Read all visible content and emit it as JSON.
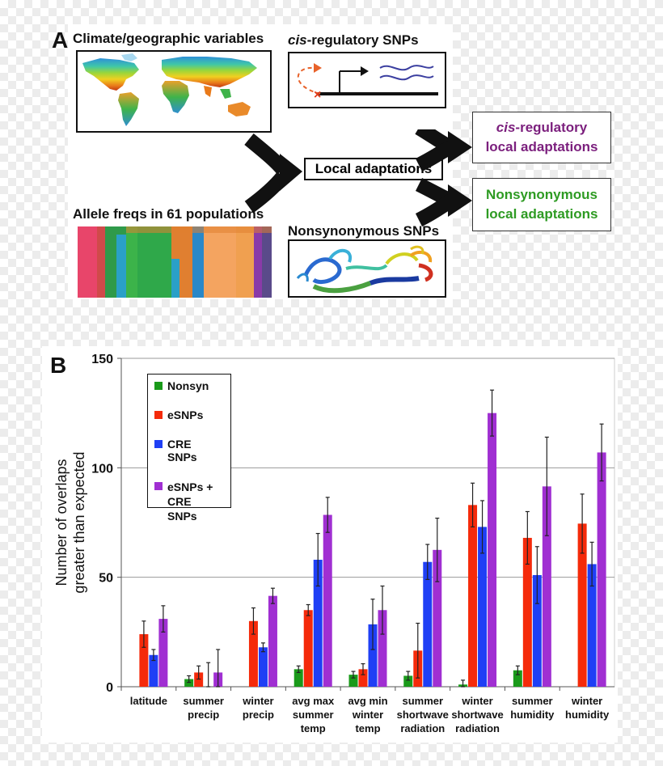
{
  "panel_a": {
    "letter": "A",
    "climate_label": "Climate/geographic variables",
    "allele_label": "Allele freqs in 61 populations",
    "cis_label_italic": "cis",
    "cis_label_rest": "-regulatory SNPs",
    "nonsyn_label": "Nonsynonymous SNPs",
    "local_adaptations": "Local adaptations",
    "out_cis_italic": "cis",
    "out_cis_rest": "-regulatory",
    "out_cis_line2": "local adaptations",
    "out_nonsyn_line1": "Nonsynonymous",
    "out_nonsyn_line2": "local adaptations",
    "colors": {
      "cis_purple": "#7b1f7d",
      "nonsyn_green": "#2e9b23",
      "arrow_orange": "#e8622a",
      "mark_red": "#e23b1a",
      "wave_blue": "#3b3fa0"
    }
  },
  "panel_b": {
    "letter": "B"
  },
  "chart_data": {
    "type": "bar",
    "title": "",
    "ylabel_line1": "Number of overlaps",
    "ylabel_line2": "greater than expected",
    "ylim": [
      0,
      150
    ],
    "yticks": [
      0,
      50,
      100,
      150
    ],
    "grid": true,
    "legend_position": "top-left",
    "categories": [
      [
        "latitude"
      ],
      [
        "summer",
        "precip"
      ],
      [
        "winter",
        "precip"
      ],
      [
        "avg max",
        "summer",
        "temp"
      ],
      [
        "avg min",
        "winter",
        "temp"
      ],
      [
        "summer",
        "shortwave",
        "radiation"
      ],
      [
        "winter",
        "shortwave",
        "radiation"
      ],
      [
        "summer",
        "humidity"
      ],
      [
        "winter",
        "humidity"
      ]
    ],
    "series": [
      {
        "name": "Nonsyn",
        "color": "#1a9a1a",
        "values": [
          0,
          3.5,
          0,
          8,
          5.5,
          5,
          1,
          7.5,
          0
        ],
        "errors": [
          0,
          1.5,
          0,
          1.5,
          1.5,
          2,
          2,
          2,
          0
        ]
      },
      {
        "name": "eSNPs",
        "color": "#f52a0a",
        "values": [
          24,
          6.5,
          30,
          35,
          8,
          16.5,
          83,
          68,
          74.5
        ],
        "errors": [
          6,
          3,
          6,
          2.5,
          2.5,
          12.5,
          10,
          12,
          13.5
        ]
      },
      {
        "name": "CRE SNPs",
        "color": "#1f3ff5",
        "values": [
          14.5,
          0,
          18,
          58,
          28.5,
          57,
          73,
          51,
          56
        ],
        "errors": [
          2.5,
          11,
          2,
          12,
          11.5,
          8,
          12,
          13,
          10
        ]
      },
      {
        "name": "eSNPs + CRE SNPs",
        "legend_line1": "eSNPs +",
        "legend_line2": "CRE SNPs",
        "color": "#a02fd2",
        "values": [
          31,
          6.5,
          41.5,
          78.5,
          35,
          62.5,
          125,
          91.5,
          107
        ],
        "errors": [
          6,
          10.5,
          3.5,
          8,
          11,
          14.5,
          10.5,
          22.5,
          13
        ]
      }
    ]
  }
}
